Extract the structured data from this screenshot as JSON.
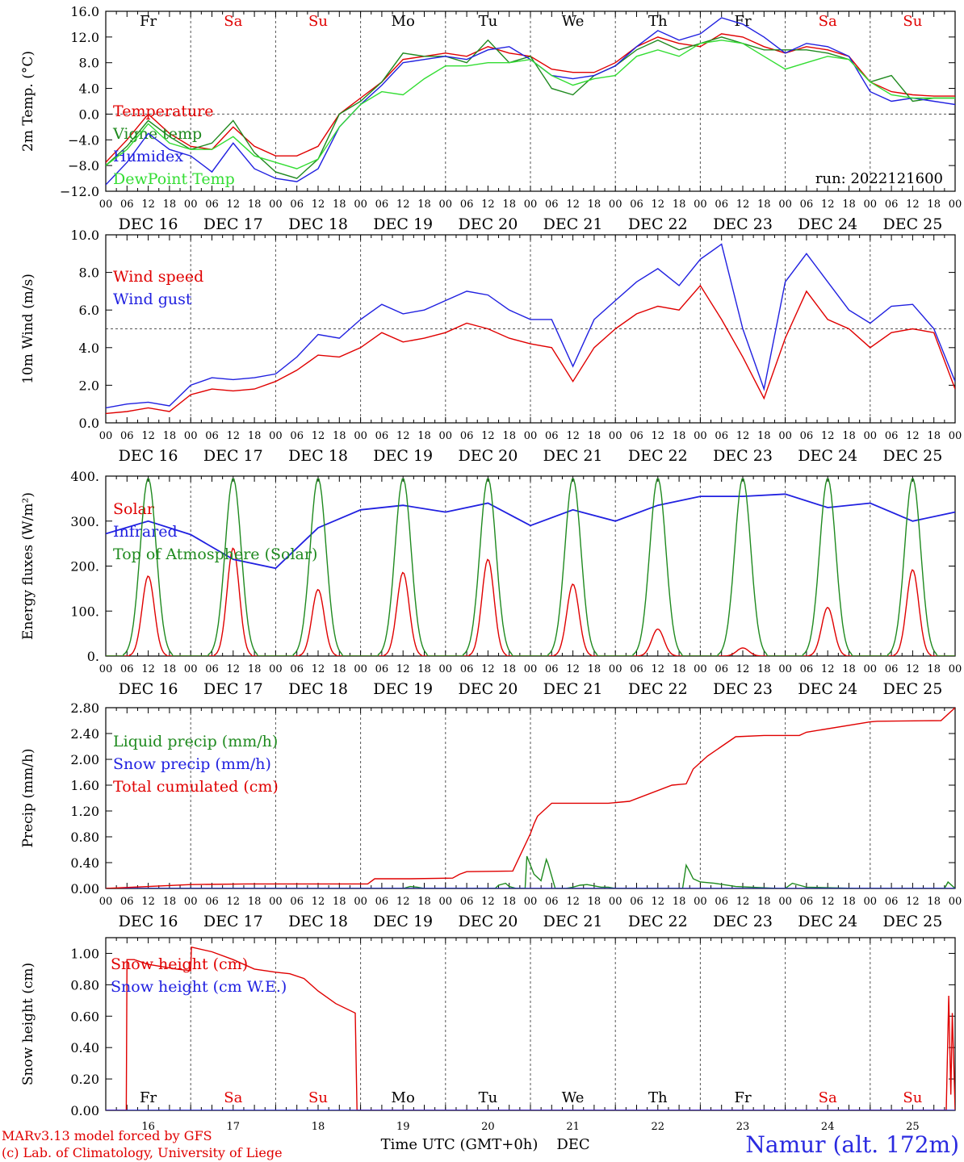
{
  "run_label": "run: 2022121600",
  "credits": {
    "line1": "MARv3.13 model forced by GFS",
    "line2": "(c) Lab. of Climatology, University of Liege"
  },
  "station": "Namur (alt. 172m)",
  "xlabel_bottom": "Time UTC (GMT+0h)",
  "month_label": "DEC",
  "colors": {
    "red": "#e00000",
    "green": "#1f8a1f",
    "lightgreen": "#33dd33",
    "blue": "#2020e0"
  },
  "days": [
    {
      "num": "16",
      "label": "DEC 16",
      "weekday": "Fr",
      "weekend": false
    },
    {
      "num": "17",
      "label": "DEC 17",
      "weekday": "Sa",
      "weekend": true
    },
    {
      "num": "18",
      "label": "DEC 18",
      "weekday": "Su",
      "weekend": true
    },
    {
      "num": "19",
      "label": "DEC 19",
      "weekday": "Mo",
      "weekend": false
    },
    {
      "num": "20",
      "label": "DEC 20",
      "weekday": "Tu",
      "weekend": false
    },
    {
      "num": "21",
      "label": "DEC 21",
      "weekday": "We",
      "weekend": false
    },
    {
      "num": "22",
      "label": "DEC 22",
      "weekday": "Th",
      "weekend": false
    },
    {
      "num": "23",
      "label": "DEC 23",
      "weekday": "Fr",
      "weekend": false
    },
    {
      "num": "24",
      "label": "DEC 24",
      "weekday": "Sa",
      "weekend": true
    },
    {
      "num": "25",
      "label": "DEC 25",
      "weekday": "Su",
      "weekend": true
    }
  ],
  "hour_ticks": [
    "00",
    "06",
    "12",
    "18"
  ],
  "final_tick": "00",
  "chart_data": [
    {
      "type": "line",
      "ylabel": "2m Temp. (°C)",
      "ylim": [
        -12,
        16
      ],
      "yticks": [
        "−12.0",
        "−8.0",
        "−4.0",
        "0.0",
        "4.0",
        "8.0",
        "12.0",
        "16.0"
      ],
      "ytick_values": [
        -12,
        -8,
        -4,
        0,
        4,
        8,
        12,
        16
      ],
      "ref_line": 0,
      "x_hours": [
        0,
        6,
        12,
        18,
        24,
        30,
        36,
        42,
        48,
        54,
        60,
        66,
        72,
        78,
        84,
        90,
        96,
        102,
        108,
        114,
        120,
        126,
        132,
        138,
        144,
        150,
        156,
        162,
        168,
        174,
        180,
        186,
        192,
        198,
        204,
        210,
        216,
        222,
        228,
        234,
        240
      ],
      "series": [
        {
          "name": "Temperature",
          "color": "red",
          "values": [
            -7.5,
            -4,
            0,
            -3,
            -5,
            -5.5,
            -2,
            -5,
            -6.5,
            -6.5,
            -5,
            0,
            2.5,
            5,
            8.5,
            9,
            9.5,
            9,
            10.5,
            9.5,
            9,
            7,
            6.5,
            6.5,
            8,
            10.5,
            12,
            11,
            10.5,
            12.5,
            12,
            10.5,
            9.5,
            10.5,
            10,
            9,
            5,
            3.5,
            3,
            2.8,
            2.8
          ]
        },
        {
          "name": "Vigne temp",
          "color": "green",
          "values": [
            -8,
            -5,
            -1,
            -3.5,
            -5.5,
            -4.5,
            -1,
            -6,
            -9,
            -10,
            -7,
            0,
            2,
            5,
            9.5,
            9,
            9,
            8,
            11.5,
            8,
            9,
            4,
            3,
            6,
            7.5,
            10,
            11.5,
            10,
            11,
            12,
            11,
            10,
            10,
            10,
            9.5,
            8.5,
            5,
            6,
            2,
            2.5,
            2.5
          ]
        },
        {
          "name": "Humidex",
          "color": "blue",
          "values": [
            -11,
            -7.5,
            -3,
            -5.5,
            -6.5,
            -9,
            -4.5,
            -8.5,
            -10,
            -10.5,
            -8.5,
            -2,
            1.5,
            4.5,
            8,
            8.5,
            9,
            8.5,
            10,
            10.5,
            8.5,
            6,
            5.5,
            6,
            7.5,
            10.5,
            13,
            11.5,
            12.5,
            15,
            14,
            12,
            9.5,
            11,
            10.5,
            9,
            3.5,
            2,
            2.5,
            2,
            1.5
          ]
        },
        {
          "name": "DewPoint Temp",
          "color": "lightgreen",
          "values": [
            -8,
            -5.5,
            -1.5,
            -4.5,
            -5.5,
            -5.5,
            -3.5,
            -6.5,
            -7.5,
            -8.5,
            -7,
            -2,
            1.5,
            3.5,
            3,
            5.5,
            7.5,
            7.5,
            8,
            8,
            8.5,
            6,
            4.5,
            5.5,
            6,
            9,
            10,
            9,
            11,
            11.5,
            11,
            9,
            7,
            8,
            9,
            8.5,
            5,
            3,
            2.5,
            2.5,
            2.5
          ]
        }
      ]
    },
    {
      "type": "line",
      "ylabel": "10m Wind (m/s)",
      "ylim": [
        0,
        10
      ],
      "yticks": [
        "0.0",
        "2.0",
        "4.0",
        "6.0",
        "8.0",
        "10.0"
      ],
      "ytick_values": [
        0,
        2,
        4,
        6,
        8,
        10
      ],
      "ref_line": 5,
      "x_hours": [
        0,
        6,
        12,
        18,
        24,
        30,
        36,
        42,
        48,
        54,
        60,
        66,
        72,
        78,
        84,
        90,
        96,
        102,
        108,
        114,
        120,
        126,
        132,
        138,
        144,
        150,
        156,
        162,
        168,
        174,
        180,
        186,
        192,
        198,
        204,
        210,
        216,
        222,
        228,
        234,
        240
      ],
      "series": [
        {
          "name": "Wind speed",
          "color": "red",
          "values": [
            0.5,
            0.6,
            0.8,
            0.6,
            1.5,
            1.8,
            1.7,
            1.8,
            2.2,
            2.8,
            3.6,
            3.5,
            4.0,
            4.8,
            4.3,
            4.5,
            4.8,
            5.3,
            5.0,
            4.5,
            4.2,
            4.0,
            2.2,
            4.0,
            5.0,
            5.8,
            6.2,
            6.0,
            7.3,
            5.5,
            3.5,
            1.3,
            4.5,
            7.0,
            5.5,
            5.0,
            4.0,
            4.8,
            5.0,
            4.8,
            1.8
          ]
        },
        {
          "name": "Wind gust",
          "color": "blue",
          "values": [
            0.8,
            1.0,
            1.1,
            0.9,
            2.0,
            2.4,
            2.3,
            2.4,
            2.6,
            3.5,
            4.7,
            4.5,
            5.5,
            6.3,
            5.8,
            6.0,
            6.5,
            7.0,
            6.8,
            6.0,
            5.5,
            5.5,
            3.0,
            5.5,
            6.5,
            7.5,
            8.2,
            7.3,
            8.7,
            9.5,
            5.0,
            1.8,
            7.5,
            9.0,
            7.5,
            6.0,
            5.3,
            6.2,
            6.3,
            5.0,
            2.2
          ]
        }
      ]
    },
    {
      "type": "line",
      "ylabel": "Energy fluxes (W/m²)",
      "ylim": [
        0,
        400
      ],
      "yticks": [
        "0.",
        "100.",
        "200.",
        "300.",
        "400."
      ],
      "ytick_values": [
        0,
        100,
        200,
        300,
        400
      ],
      "series": [
        {
          "name": "Solar",
          "color": "red",
          "peak_hour": 12,
          "daily_peaks": [
            178,
            240,
            148,
            186,
            215,
            160,
            60,
            18,
            108,
            192
          ]
        },
        {
          "name": "Infrared",
          "color": "blue",
          "x_hours": [
            0,
            12,
            24,
            36,
            48,
            60,
            72,
            84,
            96,
            108,
            120,
            132,
            144,
            156,
            168,
            180,
            192,
            204,
            216,
            228,
            240
          ],
          "values": [
            272,
            300,
            270,
            215,
            195,
            285,
            325,
            335,
            320,
            340,
            290,
            325,
            300,
            335,
            355,
            355,
            360,
            330,
            340,
            300,
            320
          ]
        },
        {
          "name": "Top of Atmosphere (Solar)",
          "color": "green",
          "peak_hour": 12,
          "daily_peaks": [
            395,
            395,
            395,
            395,
            395,
            395,
            395,
            395,
            395,
            395
          ]
        }
      ]
    },
    {
      "type": "line",
      "ylabel": "Precip (mm/h)",
      "ylim": [
        0,
        2.8
      ],
      "yticks": [
        "0.00",
        "0.40",
        "0.80",
        "1.20",
        "1.60",
        "2.00",
        "2.40",
        "2.80"
      ],
      "ytick_values": [
        0,
        0.4,
        0.8,
        1.2,
        1.6,
        2.0,
        2.4,
        2.8
      ],
      "series": [
        {
          "name": "Liquid precip (mm/h)",
          "color": "green",
          "x_hours": [
            0,
            84,
            86,
            88,
            90,
            110,
            111,
            113,
            114,
            116,
            116.5,
            118.5,
            119,
            121,
            123,
            124.5,
            125,
            127,
            128,
            129,
            130,
            132,
            134,
            136,
            138,
            140,
            142,
            144,
            146,
            158,
            163,
            164,
            165,
            166,
            168,
            172,
            178,
            190,
            192,
            194,
            196,
            198,
            212,
            214,
            216,
            218,
            237,
            238,
            240
          ],
          "values": [
            0,
            0,
            0.03,
            0.02,
            0,
            0,
            0.05,
            0.08,
            0.03,
            0,
            0,
            0,
            0.5,
            0.22,
            0.12,
            0.45,
            0.38,
            0,
            0,
            0,
            0,
            0.02,
            0.05,
            0.06,
            0.04,
            0.02,
            0.02,
            0,
            0,
            0,
            0,
            0.36,
            0.26,
            0.15,
            0.1,
            0.08,
            0.03,
            0,
            0,
            0.08,
            0.05,
            0.02,
            0,
            0,
            0,
            0,
            0,
            0.1,
            0
          ]
        },
        {
          "name": "Snow precip (mm/h)",
          "color": "blue",
          "x_hours": [
            0,
            240
          ],
          "values": [
            0,
            0
          ]
        },
        {
          "name": "Total cumulated (cm)",
          "color": "red",
          "x_hours": [
            0,
            24,
            40,
            72,
            74,
            76,
            86,
            98,
            100,
            102,
            115,
            120,
            121,
            122,
            126,
            142,
            148,
            160,
            164,
            166,
            170,
            174,
            178,
            186,
            192,
            196,
            198,
            216,
            218,
            236,
            240
          ],
          "values": [
            0,
            0.06,
            0.07,
            0.07,
            0.07,
            0.15,
            0.15,
            0.16,
            0.22,
            0.26,
            0.27,
            0.85,
            1.0,
            1.12,
            1.32,
            1.32,
            1.35,
            1.6,
            1.62,
            1.85,
            2.05,
            2.2,
            2.35,
            2.37,
            2.37,
            2.37,
            2.42,
            2.58,
            2.59,
            2.6,
            2.8
          ]
        }
      ]
    },
    {
      "type": "line",
      "ylabel": "Snow height (cm)",
      "ylim": [
        0,
        1.1
      ],
      "yticks": [
        "0.00",
        "0.20",
        "0.40",
        "0.60",
        "0.80",
        "1.00"
      ],
      "ytick_values": [
        0,
        0.2,
        0.4,
        0.6,
        0.8,
        1.0
      ],
      "series": [
        {
          "name": "Snow height (cm)",
          "color": "red",
          "x_hours": [
            0,
            5.8,
            6.0,
            8,
            12,
            20,
            24,
            24.2,
            30,
            36,
            42,
            48,
            52,
            56,
            60,
            65,
            70.5,
            71,
            237.5,
            238.2,
            238.8,
            239.2,
            240
          ],
          "values": [
            0,
            0,
            0.96,
            0.96,
            0.93,
            0.9,
            0.89,
            1.04,
            1.01,
            0.96,
            0.9,
            0.88,
            0.87,
            0.84,
            0.76,
            0.68,
            0.62,
            0,
            0,
            0.73,
            0.1,
            0.62,
            0
          ]
        },
        {
          "name": "Snow height (cm W.E.)",
          "color": "blue",
          "x_hours": [
            0,
            240
          ],
          "values": [
            0,
            0
          ]
        }
      ]
    }
  ]
}
